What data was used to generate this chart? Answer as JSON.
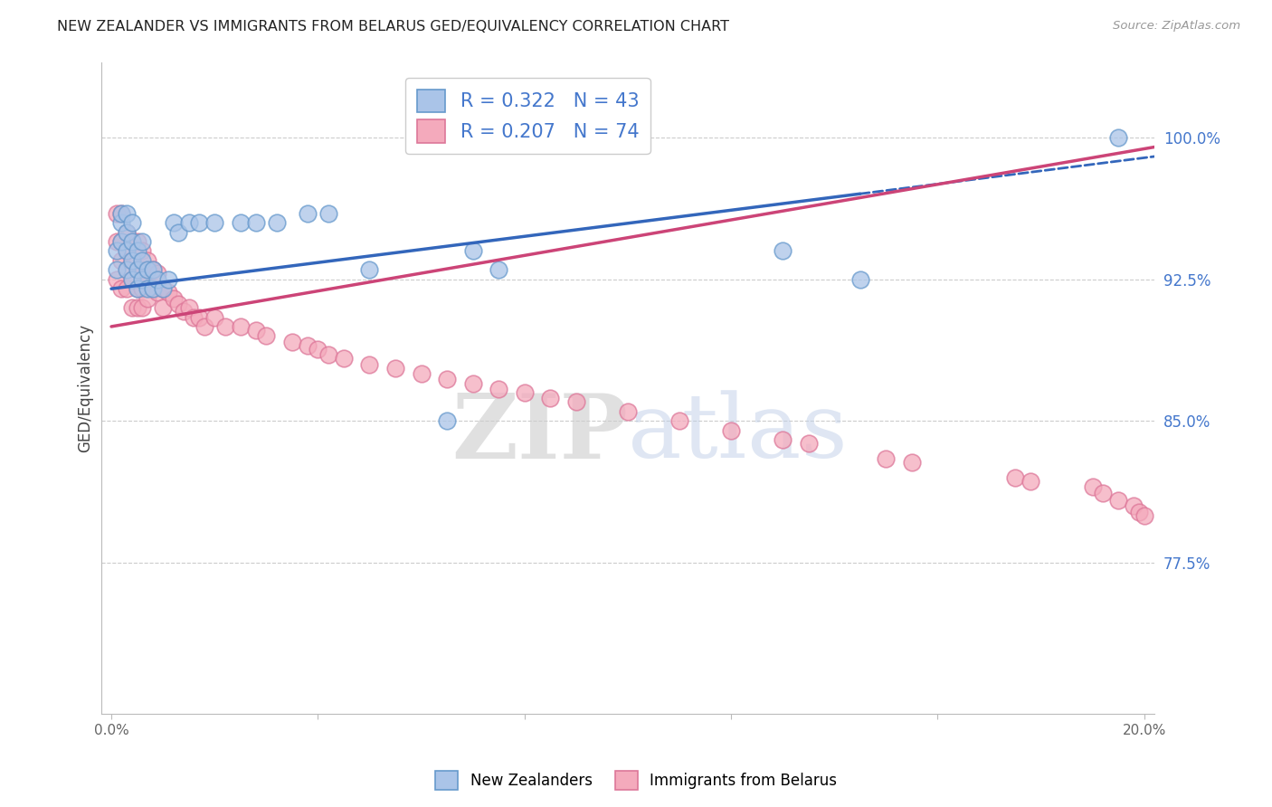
{
  "title": "NEW ZEALANDER VS IMMIGRANTS FROM BELARUS GED/EQUIVALENCY CORRELATION CHART",
  "source": "Source: ZipAtlas.com",
  "ylabel": "GED/Equivalency",
  "xlim": [
    -0.002,
    0.202
  ],
  "ylim": [
    0.695,
    1.04
  ],
  "yticks": [
    0.775,
    0.85,
    0.925,
    1.0
  ],
  "ytick_labels": [
    "77.5%",
    "85.0%",
    "92.5%",
    "100.0%"
  ],
  "xtick_positions": [
    0.0,
    0.04,
    0.08,
    0.12,
    0.16,
    0.2
  ],
  "xtick_labels": [
    "0.0%",
    "",
    "",
    "",
    "",
    "20.0%"
  ],
  "blue_scatter_x": [
    0.001,
    0.001,
    0.002,
    0.002,
    0.002,
    0.003,
    0.003,
    0.003,
    0.003,
    0.004,
    0.004,
    0.004,
    0.004,
    0.005,
    0.005,
    0.005,
    0.006,
    0.006,
    0.006,
    0.007,
    0.007,
    0.008,
    0.008,
    0.009,
    0.01,
    0.011,
    0.012,
    0.013,
    0.015,
    0.017,
    0.02,
    0.025,
    0.028,
    0.032,
    0.038,
    0.042,
    0.05,
    0.065,
    0.07,
    0.075,
    0.13,
    0.145,
    0.195
  ],
  "blue_scatter_y": [
    0.93,
    0.94,
    0.955,
    0.945,
    0.96,
    0.93,
    0.94,
    0.95,
    0.96,
    0.925,
    0.935,
    0.945,
    0.955,
    0.92,
    0.93,
    0.94,
    0.925,
    0.935,
    0.945,
    0.92,
    0.93,
    0.92,
    0.93,
    0.925,
    0.92,
    0.925,
    0.955,
    0.95,
    0.955,
    0.955,
    0.955,
    0.955,
    0.955,
    0.955,
    0.96,
    0.96,
    0.93,
    0.85,
    0.94,
    0.93,
    0.94,
    0.925,
    1.0
  ],
  "pink_scatter_x": [
    0.001,
    0.001,
    0.001,
    0.002,
    0.002,
    0.002,
    0.002,
    0.003,
    0.003,
    0.003,
    0.003,
    0.004,
    0.004,
    0.004,
    0.004,
    0.005,
    0.005,
    0.005,
    0.005,
    0.006,
    0.006,
    0.006,
    0.006,
    0.007,
    0.007,
    0.007,
    0.008,
    0.008,
    0.009,
    0.009,
    0.01,
    0.01,
    0.011,
    0.012,
    0.013,
    0.014,
    0.015,
    0.016,
    0.017,
    0.018,
    0.02,
    0.022,
    0.025,
    0.028,
    0.03,
    0.035,
    0.038,
    0.04,
    0.042,
    0.045,
    0.05,
    0.055,
    0.06,
    0.065,
    0.07,
    0.075,
    0.08,
    0.085,
    0.09,
    0.1,
    0.11,
    0.12,
    0.13,
    0.135,
    0.15,
    0.155,
    0.175,
    0.178,
    0.19,
    0.192,
    0.195,
    0.198,
    0.199,
    0.2
  ],
  "pink_scatter_y": [
    0.96,
    0.945,
    0.925,
    0.96,
    0.945,
    0.935,
    0.92,
    0.95,
    0.94,
    0.93,
    0.92,
    0.945,
    0.935,
    0.925,
    0.91,
    0.945,
    0.93,
    0.92,
    0.91,
    0.94,
    0.93,
    0.92,
    0.91,
    0.935,
    0.925,
    0.915,
    0.93,
    0.92,
    0.928,
    0.918,
    0.92,
    0.91,
    0.918,
    0.915,
    0.912,
    0.908,
    0.91,
    0.905,
    0.905,
    0.9,
    0.905,
    0.9,
    0.9,
    0.898,
    0.895,
    0.892,
    0.89,
    0.888,
    0.885,
    0.883,
    0.88,
    0.878,
    0.875,
    0.872,
    0.87,
    0.867,
    0.865,
    0.862,
    0.86,
    0.855,
    0.85,
    0.845,
    0.84,
    0.838,
    0.83,
    0.828,
    0.82,
    0.818,
    0.815,
    0.812,
    0.808,
    0.805,
    0.802,
    0.8
  ],
  "blue_line_x0": 0.0,
  "blue_line_x1": 0.202,
  "blue_line_y0": 0.92,
  "blue_line_y1": 0.99,
  "blue_line_solid_end": 0.145,
  "pink_line_x0": 0.0,
  "pink_line_x1": 0.202,
  "pink_line_y0": 0.9,
  "pink_line_y1": 0.995,
  "blue_line_color": "#3366bb",
  "pink_line_color": "#cc4477",
  "scatter_blue_color": "#aac4e8",
  "scatter_pink_color": "#f4aabc",
  "scatter_blue_edge": "#6699cc",
  "scatter_pink_edge": "#dd7799",
  "background_color": "#ffffff",
  "grid_color": "#cccccc",
  "title_color": "#222222",
  "source_color": "#999999",
  "axis_label_color": "#444444",
  "ytick_color": "#4477cc",
  "watermark_zip_color": "#cccccc",
  "watermark_atlas_color": "#c0cfe8"
}
